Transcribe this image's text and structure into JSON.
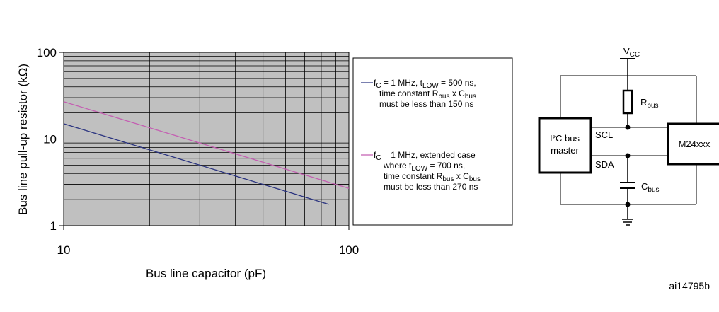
{
  "chart_data": {
    "type": "line",
    "title": "",
    "xlabel": "Bus line capacitor (pF)",
    "ylabel": "Bus line pull-up resistor (kΩ)",
    "xscale": "log",
    "yscale": "log",
    "xlim": [
      10,
      100
    ],
    "ylim": [
      1,
      100
    ],
    "x_ticks": [
      "10",
      "100"
    ],
    "y_ticks": [
      "1",
      "10",
      "100"
    ],
    "grid": true,
    "legend_position": "right",
    "series": [
      {
        "color": "#2b3480",
        "points": [
          [
            10,
            15
          ],
          [
            85,
            1.76
          ]
        ],
        "legend": {
          "lines": [
            [
              [
                "f"
              ],
              [
                "C",
                "sub"
              ],
              [
                " = 1 MHz, t"
              ],
              [
                "LOW",
                "sub"
              ],
              [
                " = 500 ns,"
              ]
            ],
            [
              [
                "time constant R"
              ],
              [
                "bus",
                "sub"
              ],
              [
                " x C"
              ],
              [
                "bus",
                "sub"
              ]
            ],
            [
              [
                "must be less than 150 ns"
              ]
            ]
          ]
        }
      },
      {
        "color": "#c45fb2",
        "points": [
          [
            10,
            27
          ],
          [
            100,
            2.7
          ]
        ],
        "legend": {
          "lines": [
            [
              [
                "f"
              ],
              [
                "C",
                "sub"
              ],
              [
                " = 1 MHz, extended case"
              ]
            ],
            [
              [
                "where t"
              ],
              [
                "LOW",
                "sub"
              ],
              [
                " = 700 ns,"
              ]
            ],
            [
              [
                "time constant R"
              ],
              [
                "bus",
                "sub"
              ],
              [
                " x C"
              ],
              [
                "bus",
                "sub"
              ]
            ],
            [
              [
                "must be less than 270 ns"
              ]
            ]
          ]
        }
      }
    ]
  },
  "diagram": {
    "vcc": {
      "base": "V",
      "sub": "CC"
    },
    "rbus": {
      "base": "R",
      "sub": "bus"
    },
    "cbus": {
      "base": "C",
      "sub": "bus"
    },
    "master_line1": "I²C bus",
    "master_line2": "master",
    "scl": "SCL",
    "sda": "SDA",
    "device": "M24xxx"
  },
  "figure_id": "ai14795b"
}
